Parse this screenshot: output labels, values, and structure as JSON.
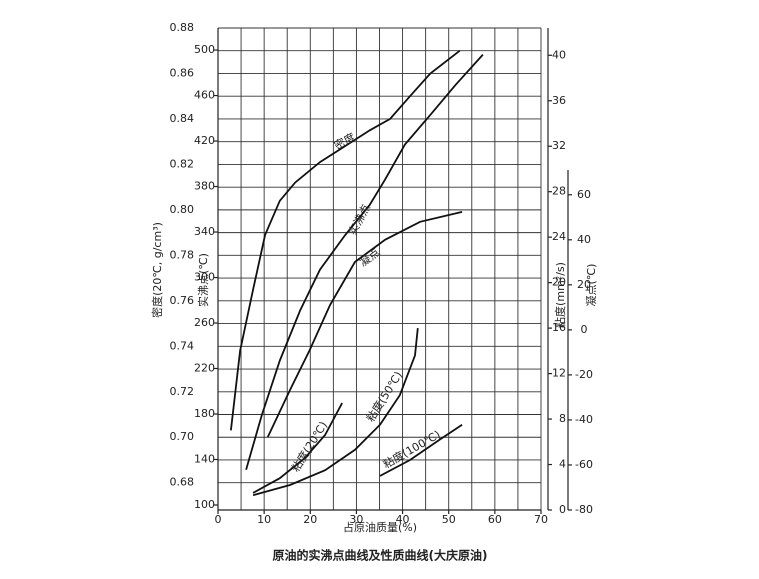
{
  "chart_data": {
    "type": "line",
    "caption": "原油的实沸点曲线及性质曲线(大庆原油)",
    "x_label": "占原油质量(%)",
    "y_label": "密度(20℃, g/cm³)",
    "y2_label": "实沸点(℃)",
    "y3_label": "粘度(mm²/s)",
    "y4_label": "凝点(℃)",
    "xlim": [
      0,
      70
    ],
    "xticks": [
      0,
      10,
      20,
      30,
      40,
      50,
      60,
      70
    ],
    "ylim": [
      0.668,
      0.88
    ],
    "yticks": [
      0.68,
      {
        "value": 0.7,
        "label": "0.70"
      },
      0.72,
      0.74,
      0.76,
      0.78,
      {
        "value": 0.8,
        "label": "0.80"
      },
      0.82,
      0.84,
      0.86,
      0.88
    ],
    "y2lim": [
      95.6,
      519.4
    ],
    "y2ticks": [
      100,
      140,
      180,
      220,
      260,
      300,
      340,
      380,
      420,
      460,
      500
    ],
    "y3lim": [
      0,
      42.4
    ],
    "y3ticks": [
      0,
      4,
      8,
      12,
      16,
      20,
      24,
      28,
      32,
      36,
      40
    ],
    "y4lim": [
      -80,
      71
    ],
    "y4ticks": [
      -80,
      -60,
      -40,
      -20,
      0,
      20,
      40,
      60
    ],
    "grid": true,
    "series": [
      {
        "name": "密度",
        "axis": "y",
        "color": "#111",
        "x": [
          2.8,
          4.8,
          7.6,
          10.2,
          13.4,
          16.7,
          22.1,
          27.5,
          32.9,
          37.3,
          41.6,
          46,
          52.4
        ],
        "values": [
          0.703,
          0.738,
          0.765,
          0.789,
          0.804,
          0.812,
          0.821,
          0.828,
          0.835,
          0.84,
          0.85,
          0.86,
          0.87
        ]
      },
      {
        "name": "实沸点",
        "axis": "y2",
        "color": "#111",
        "x": [
          6.1,
          9.5,
          13.4,
          17.8,
          22.1,
          27.5,
          32.9,
          36.2,
          40.5,
          46,
          51.4,
          57.4
        ],
        "values": [
          131,
          179,
          227,
          271,
          307,
          337,
          364,
          386,
          417,
          443,
          469,
          496
        ]
      },
      {
        "name": "凝点",
        "axis": "y4",
        "color": "#111",
        "x": [
          10.8,
          15.6,
          19.9,
          24.3,
          29.7,
          36.2,
          43.8,
          52.9
        ],
        "values": [
          -47.6,
          -26.7,
          -8.9,
          11.1,
          30.2,
          40,
          48,
          52.4
        ]
      },
      {
        "name": "粘度(20℃)",
        "axis": "y3",
        "color": "#111",
        "x": [
          7.6,
          13.4,
          18.9,
          23.2,
          26.9
        ],
        "values": [
          1.5,
          2.8,
          4.6,
          6.6,
          9.4
        ]
      },
      {
        "name": "粘度(50℃)",
        "axis": "y3",
        "color": "#111",
        "x": [
          7.6,
          15.6,
          23.2,
          29.7,
          35.1,
          39.4,
          42.7,
          43.3
        ],
        "values": [
          1.3,
          2.2,
          3.5,
          5.3,
          7.5,
          10.1,
          13.6,
          16
        ]
      },
      {
        "name": "粘度(100℃)",
        "axis": "y3",
        "color": "#111",
        "x": [
          35.1,
          41.6,
          48.1,
          52.9
        ],
        "values": [
          3,
          4.4,
          6.2,
          7.5
        ]
      }
    ]
  }
}
